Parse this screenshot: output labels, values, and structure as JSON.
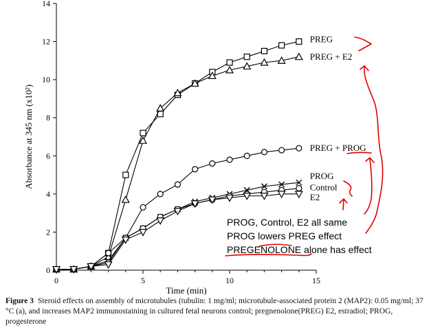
{
  "chart_data": {
    "type": "line",
    "xlabel": "Time (min)",
    "ylabel": "Absorbance at 345 nm (x10²)",
    "xlim": [
      0,
      15
    ],
    "ylim": [
      0,
      14
    ],
    "xticks": [
      0,
      5,
      10,
      15
    ],
    "yticks": [
      0,
      2,
      4,
      6,
      8,
      10,
      12,
      14
    ],
    "grid": false,
    "legend": "direct labels at right end of each series",
    "series": [
      {
        "name": "PREG",
        "marker": "square",
        "x": [
          0,
          1,
          2,
          3,
          4,
          5,
          6,
          7,
          8,
          9,
          10,
          11,
          12,
          13,
          14
        ],
        "y": [
          0.05,
          0.05,
          0.2,
          0.9,
          5.0,
          7.2,
          8.2,
          9.2,
          9.8,
          10.4,
          10.9,
          11.2,
          11.5,
          11.8,
          12.0
        ]
      },
      {
        "name": "PREG + E2",
        "marker": "triangle-up",
        "x": [
          0,
          1,
          2,
          3,
          4,
          5,
          6,
          7,
          8,
          9,
          10,
          11,
          12,
          13,
          14
        ],
        "y": [
          0.05,
          0.05,
          0.2,
          0.7,
          3.7,
          6.8,
          8.5,
          9.3,
          9.8,
          10.2,
          10.5,
          10.7,
          10.9,
          11.0,
          11.2
        ]
      },
      {
        "name": "PREG + PROG",
        "marker": "circle",
        "x": [
          0,
          1,
          2,
          3,
          4,
          5,
          6,
          7,
          8,
          9,
          10,
          11,
          12,
          13,
          14
        ],
        "y": [
          0.05,
          0.05,
          0.2,
          0.9,
          1.7,
          3.3,
          4.0,
          4.5,
          5.3,
          5.6,
          5.8,
          6.0,
          6.2,
          6.3,
          6.4
        ]
      },
      {
        "name": "PROG",
        "marker": "x",
        "x": [
          0,
          1,
          2,
          3,
          4,
          5,
          6,
          7,
          8,
          9,
          10,
          11,
          12,
          13,
          14
        ],
        "y": [
          0.05,
          0.05,
          0.2,
          0.5,
          1.7,
          2.2,
          2.8,
          3.2,
          3.6,
          3.8,
          4.0,
          4.2,
          4.4,
          4.5,
          4.6
        ]
      },
      {
        "name": "Control",
        "marker": "circle",
        "x": [
          0,
          1,
          2,
          3,
          4,
          5,
          6,
          7,
          8,
          9,
          10,
          11,
          12,
          13,
          14
        ],
        "y": [
          0.05,
          0.05,
          0.2,
          0.4,
          1.7,
          2.2,
          2.8,
          3.2,
          3.5,
          3.7,
          3.9,
          4.0,
          4.1,
          4.2,
          4.3
        ]
      },
      {
        "name": "E2",
        "marker": "triangle-down",
        "x": [
          0,
          1,
          2,
          3,
          4,
          5,
          6,
          7,
          8,
          9,
          10,
          11,
          12,
          13,
          14
        ],
        "y": [
          0.05,
          0.05,
          0.2,
          0.3,
          1.6,
          2.0,
          2.6,
          3.1,
          3.5,
          3.7,
          3.8,
          3.9,
          3.9,
          4.0,
          4.0
        ]
      }
    ],
    "annotations": {
      "color": "#e00000",
      "lines": [
        "PROG, Control, E2 all same",
        "PROG lowers PREG effect",
        "PREGENOLONE alone has effect"
      ]
    }
  },
  "caption": {
    "label": "Figure 3",
    "text": "Steroid effects on assembly of microtubules (tubulin: 1 mg/ml; microtubule-associated protein 2 (MAP2): 0.05 mg/ml; 37 °C (a), and increases MAP2 immunostaining in cultured fetal neurons control; pregnenolone(PREG) E2, estradiol; PROG, progesterone"
  }
}
